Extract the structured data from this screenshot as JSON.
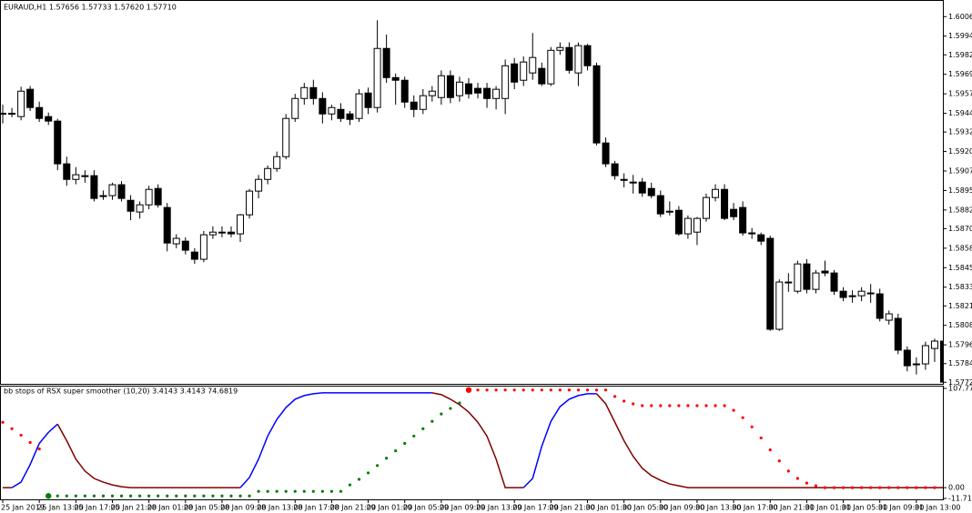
{
  "chart_data": [
    {
      "type": "candlestick",
      "title": "EURAUD,H1 1.57656 1.57733 1.57620 1.57710",
      "categories": [
        "25 Jan 2019",
        null,
        null,
        null,
        "25 Jan 13:00",
        null,
        null,
        null,
        "25 Jan 17:00",
        null,
        null,
        null,
        "25 Jan 21:00",
        null,
        null,
        null,
        "28 Jan 01:00",
        null,
        null,
        null,
        "28 Jan 05:00",
        null,
        null,
        null,
        "28 Jan 09:00",
        null,
        null,
        null,
        "28 Jan 13:00",
        null,
        null,
        null,
        "28 Jan 17:00",
        null,
        null,
        null,
        "28 Jan 21:00",
        null,
        null,
        null,
        "29 Jan 01:00",
        null,
        null,
        null,
        "29 Jan 05:00",
        null,
        null,
        null,
        "29 Jan 09:00",
        null,
        null,
        null,
        "29 Jan 13:00",
        null,
        null,
        null,
        "29 Jan 17:00",
        null,
        null,
        null,
        "29 Jan 21:00",
        null,
        null,
        null,
        "30 Jan 01:00",
        null,
        null,
        null,
        "30 Jan 05:00",
        null,
        null,
        null,
        "30 Jan 09:00",
        null,
        null,
        null,
        "30 Jan 13:00",
        null,
        null,
        null,
        "30 Jan 17:00",
        null,
        null,
        null,
        "30 Jan 21:00",
        null,
        null,
        null,
        "31 Jan 01:00",
        null,
        null,
        null,
        "31 Jan 05:00",
        null,
        null,
        null,
        "31 Jan 09:00",
        null,
        null,
        null,
        "31 Jan 13:00",
        null,
        null,
        null
      ],
      "open": [
        1.59441,
        1.59445,
        1.59424,
        1.59599,
        1.59482,
        1.59424,
        1.59395,
        1.59121,
        1.59021,
        1.59045,
        1.59045,
        1.58917,
        1.58917,
        1.58987,
        1.58887,
        1.58812,
        1.58858,
        1.58963,
        1.58841,
        1.58608,
        1.58625,
        1.58555,
        1.58509,
        1.58666,
        1.58683,
        1.58683,
        1.58672,
        1.58794,
        1.58946,
        1.59021,
        1.59091,
        1.59167,
        1.59412,
        1.5954,
        1.5961,
        1.5954,
        1.59441,
        1.5947,
        1.59441,
        1.59412,
        1.59575,
        1.59482,
        1.59861,
        1.59674,
        1.59657,
        1.59517,
        1.5947,
        1.59558,
        1.59546,
        1.59686,
        1.59558,
        1.59634,
        1.59605,
        1.59605,
        1.5954,
        1.5954,
        1.59762,
        1.59657,
        1.59704,
        1.59733,
        1.59634,
        1.59849,
        1.59867,
        1.59704,
        1.59879,
        1.5975,
        1.59255,
        1.59121,
        1.59021,
        1.59004,
        1.59004,
        1.58963,
        1.58917,
        1.58817,
        1.58823,
        1.58672,
        1.58683,
        1.58771,
        1.58905,
        1.58957,
        1.58829,
        1.58841,
        1.58678,
        1.58666,
        1.58643,
        1.5806,
        1.58363,
        1.58304,
        1.58479,
        1.58316,
        1.58433,
        1.58421,
        1.58304,
        1.58275,
        1.58275,
        1.58293,
        1.58287,
        1.58118,
        1.5813,
        1.57926,
        1.57838,
        1.57838,
        1.57937,
        1.57984
      ],
      "high": [
        1.595,
        1.5948,
        1.59616,
        1.5962,
        1.5952,
        1.5945,
        1.5941,
        1.59167,
        1.591,
        1.5908,
        1.5908,
        1.5895,
        1.59,
        1.5901,
        1.5892,
        1.5888,
        1.5898,
        1.5899,
        1.5887,
        1.5867,
        1.5865,
        1.5858,
        1.5869,
        1.5872,
        1.5872,
        1.5872,
        1.588,
        1.5896,
        1.5905,
        1.5911,
        1.592,
        1.5944,
        1.5957,
        1.5964,
        1.5966,
        1.5958,
        1.595,
        1.5951,
        1.5946,
        1.596,
        1.5961,
        1.60042,
        1.5995,
        1.597,
        1.5968,
        1.5956,
        1.596,
        1.5962,
        1.5972,
        1.5972,
        1.5968,
        1.5967,
        1.5964,
        1.5964,
        1.5962,
        1.5979,
        1.598,
        1.5981,
        1.5996,
        1.5977,
        1.5987,
        1.599,
        1.599,
        1.599,
        1.5989,
        1.5977,
        1.5929,
        1.5914,
        1.5906,
        1.5905,
        1.5903,
        1.59,
        1.5895,
        1.5888,
        1.5885,
        1.5879,
        1.5878,
        1.5893,
        1.5899,
        1.5899,
        1.5887,
        1.5888,
        1.5871,
        1.5868,
        1.5866,
        1.5838,
        1.5842,
        1.585,
        1.5851,
        1.5844,
        1.585,
        1.5844,
        1.5833,
        1.5831,
        1.5833,
        1.5835,
        1.5832,
        1.5818,
        1.5816,
        1.5795,
        1.5788,
        1.5798,
        1.58,
        1.58
      ],
      "low": [
        1.5938,
        1.5942,
        1.594,
        1.5946,
        1.5939,
        1.5937,
        1.5908,
        1.5898,
        1.5899,
        1.59,
        1.5888,
        1.5889,
        1.5889,
        1.5888,
        1.5876,
        1.5877,
        1.5883,
        1.5884,
        1.5856,
        1.5858,
        1.5854,
        1.5848,
        1.5849,
        1.5864,
        1.5865,
        1.5865,
        1.5862,
        1.5877,
        1.589,
        1.5899,
        1.5907,
        1.5915,
        1.5939,
        1.595,
        1.595,
        1.5938,
        1.594,
        1.5939,
        1.5937,
        1.5939,
        1.5944,
        1.5945,
        1.5964,
        1.595,
        1.5948,
        1.5942,
        1.5944,
        1.5952,
        1.595,
        1.5951,
        1.5952,
        1.5954,
        1.5954,
        1.5948,
        1.5947,
        1.5944,
        1.596,
        1.5962,
        1.5966,
        1.5962,
        1.5962,
        1.5982,
        1.597,
        1.5962,
        1.5972,
        1.5924,
        1.591,
        1.5902,
        1.5897,
        1.5893,
        1.5891,
        1.589,
        1.5878,
        1.5879,
        1.5866,
        1.5864,
        1.586,
        1.5875,
        1.5888,
        1.5876,
        1.5876,
        1.5866,
        1.5864,
        1.586,
        1.5805,
        1.5805,
        1.583,
        1.5829,
        1.5829,
        1.5829,
        1.584,
        1.5828,
        1.5824,
        1.5823,
        1.5824,
        1.5823,
        1.5811,
        1.5809,
        1.579,
        1.5779,
        1.5777,
        1.578,
        1.5785,
        1.57721
      ],
      "close": [
        1.59445,
        1.59441,
        1.59587,
        1.59482,
        1.59412,
        1.59395,
        1.59121,
        1.59021,
        1.59051,
        1.59045,
        1.58899,
        1.58912,
        1.58987,
        1.58899,
        1.58817,
        1.58858,
        1.58957,
        1.58858,
        1.58613,
        1.58643,
        1.58567,
        1.58509,
        1.58666,
        1.58683,
        1.58678,
        1.58672,
        1.58794,
        1.58946,
        1.59021,
        1.59091,
        1.59167,
        1.59412,
        1.5954,
        1.5961,
        1.5954,
        1.59441,
        1.59482,
        1.59412,
        1.59406,
        1.5957,
        1.59482,
        1.59861,
        1.59674,
        1.59657,
        1.59517,
        1.5947,
        1.59558,
        1.59587,
        1.59686,
        1.59546,
        1.59645,
        1.5957,
        1.59575,
        1.5954,
        1.59599,
        1.5975,
        1.59645,
        1.59774,
        1.59803,
        1.59634,
        1.59849,
        1.59867,
        1.59721,
        1.59879,
        1.5975,
        1.59255,
        1.59121,
        1.59045,
        1.59015,
        1.58998,
        1.58934,
        1.58917,
        1.588,
        1.58812,
        1.58672,
        1.58771,
        1.58771,
        1.58905,
        1.58957,
        1.58771,
        1.58782,
        1.58678,
        1.58672,
        1.58625,
        1.5806,
        1.58363,
        1.5836,
        1.58479,
        1.58316,
        1.58421,
        1.58421,
        1.58304,
        1.58264,
        1.5827,
        1.58304,
        1.5829,
        1.5813,
        1.58159,
        1.57926,
        1.57826,
        1.57835,
        1.57955,
        1.57984,
        1.57721
      ],
      "up_color": "#ffffff",
      "down_color": "#000000",
      "ylim": [
        1.5771,
        1.6016
      ],
      "yticks": [
        1.60065,
        {
          "value": 1.5994,
          "label": "1.59940"
        },
        {
          "value": 1.5982,
          "label": "1.59820"
        },
        1.59695,
        {
          "value": 1.5957,
          "label": "1.59570"
        },
        1.59445,
        1.59325,
        {
          "value": 1.592,
          "label": "1.59200"
        },
        1.59075,
        {
          "value": 1.5895,
          "label": "1.58950"
        },
        1.58825,
        1.58705,
        {
          "value": 1.5858,
          "label": "1.58580"
        },
        1.58455,
        {
          "value": 1.5833,
          "label": "1.58330"
        },
        {
          "value": 1.5821,
          "label": "1.58210"
        },
        1.58085,
        {
          "value": 1.5796,
          "label": "1.57960"
        },
        {
          "value": 1.5784,
          "label": "1.57840"
        },
        {
          "value": 1.5772,
          "label": "1.57720"
        }
      ]
    },
    {
      "type": "line",
      "label": "bb stops of RSX super smoother (10,20) 3.4143 3.4143 74.6819",
      "ylim": [
        -11.7134,
        107.7722
      ],
      "yticks": [
        107.7722,
        {
          "value": 0,
          "label": "0.00"
        },
        -11.7134
      ],
      "series": [
        {
          "up_color": "#0000ff",
          "down_color": "#800000",
          "style": "line",
          "values": [
            0,
            0,
            6,
            25,
            48,
            60,
            69,
            51,
            31,
            18,
            10,
            6,
            3,
            1,
            0,
            0,
            0,
            0,
            0,
            0,
            0,
            0,
            0,
            0,
            0,
            0,
            0,
            11,
            31,
            56,
            74,
            87,
            96,
            100,
            102,
            103,
            103,
            103,
            103,
            103,
            103,
            103,
            103,
            103,
            103,
            103,
            103,
            103,
            101,
            96,
            90,
            82,
            71,
            56,
            31,
            0,
            0,
            0,
            10,
            45,
            72,
            88,
            96,
            100,
            102,
            102,
            91,
            71,
            51,
            34,
            21,
            13,
            8,
            4,
            2,
            0,
            0,
            0,
            0,
            0,
            0,
            0,
            0,
            0,
            0,
            0,
            0,
            0,
            0,
            0,
            0,
            0,
            0,
            0,
            0,
            0,
            0,
            0,
            0,
            0,
            0,
            0,
            0,
            0
          ]
        },
        {
          "color": "#ff0000",
          "style": "dots",
          "values": [
            71,
            64,
            57,
            49,
            42,
            null,
            null,
            null,
            null,
            null,
            null,
            null,
            null,
            null,
            null,
            null,
            null,
            null,
            null,
            null,
            null,
            null,
            null,
            null,
            null,
            null,
            null,
            null,
            null,
            null,
            null,
            null,
            null,
            null,
            null,
            null,
            null,
            null,
            null,
            null,
            null,
            null,
            null,
            null,
            null,
            null,
            null,
            null,
            null,
            null,
            null,
            106,
            106,
            106,
            106,
            106,
            106,
            106,
            106,
            106,
            106,
            106,
            106,
            106,
            106,
            106,
            106,
            99,
            94,
            91,
            89,
            89,
            89,
            89,
            89,
            89,
            89,
            89,
            89,
            89,
            84,
            76,
            66,
            54,
            41,
            29,
            18,
            10,
            5,
            2,
            0,
            0,
            0,
            0,
            0,
            0,
            0,
            0,
            0,
            0,
            0,
            0,
            0,
            0
          ]
        },
        {
          "color": "#008000",
          "style": "dots",
          "values": [
            null,
            null,
            null,
            null,
            null,
            -9,
            -9,
            -9,
            -9,
            -9,
            -9,
            -9,
            -9,
            -9,
            -9,
            -9,
            -9,
            -9,
            -9,
            -9,
            -9,
            -9,
            -9,
            -9,
            -9,
            -9,
            -9,
            -9,
            -4,
            -4,
            -4,
            -4,
            -4,
            -4,
            -4,
            -4,
            -4,
            -4,
            3,
            9,
            16,
            24,
            32,
            40,
            48,
            56,
            64,
            72,
            80,
            86,
            92,
            null,
            null,
            null,
            null,
            null,
            null,
            null,
            null,
            null,
            null,
            null,
            null,
            null,
            null,
            null,
            null,
            null,
            null,
            null,
            null,
            null,
            null,
            null,
            null,
            null,
            null,
            null,
            null,
            null,
            null,
            null,
            null,
            null,
            null,
            null,
            null,
            null,
            null,
            null,
            null,
            null,
            null,
            null,
            null,
            null,
            null,
            null,
            null,
            null,
            null,
            null,
            null,
            null
          ]
        }
      ]
    }
  ]
}
